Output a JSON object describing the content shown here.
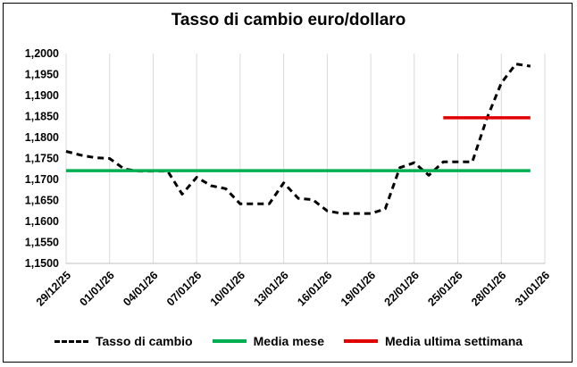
{
  "chart_data": {
    "type": "line",
    "title": "Tasso di cambio euro/dollaro",
    "xlabel": "",
    "ylabel": "",
    "x_range": [
      "2025-12-29",
      "2026-01-31"
    ],
    "x_tick_labels": [
      "29/12/25",
      "01/01/26",
      "04/01/26",
      "07/01/26",
      "10/01/26",
      "13/01/26",
      "16/01/26",
      "19/01/26",
      "22/01/26",
      "25/01/26",
      "28/01/26",
      "31/01/26"
    ],
    "ylim": [
      1.15,
      1.2
    ],
    "y_tick_labels": [
      "1,1500",
      "1,1550",
      "1,1600",
      "1,1650",
      "1,1700",
      "1,1750",
      "1,1800",
      "1,1850",
      "1,1900",
      "1,1950",
      "1,2000"
    ],
    "grid": "vertical",
    "legend_position": "bottom",
    "series": [
      {
        "name": "Tasso di cambio",
        "style": "dashed",
        "color": "#000000",
        "x": [
          "2025-12-29",
          "2025-12-30",
          "2025-12-31",
          "2026-01-01",
          "2026-01-02",
          "2026-01-03",
          "2026-01-04",
          "2026-01-05",
          "2026-01-06",
          "2026-01-07",
          "2026-01-08",
          "2026-01-09",
          "2026-01-10",
          "2026-01-11",
          "2026-01-12",
          "2026-01-13",
          "2026-01-14",
          "2026-01-15",
          "2026-01-16",
          "2026-01-17",
          "2026-01-18",
          "2026-01-19",
          "2026-01-20",
          "2026-01-21",
          "2026-01-22",
          "2026-01-23",
          "2026-01-24",
          "2026-01-25",
          "2026-01-26",
          "2026-01-27",
          "2026-01-28",
          "2026-01-29",
          "2026-01-30"
        ],
        "y": [
          1.1767,
          1.1758,
          1.1752,
          1.175,
          1.1725,
          1.172,
          1.172,
          1.172,
          1.1665,
          1.1705,
          1.1685,
          1.1678,
          1.1642,
          1.1642,
          1.1642,
          1.1692,
          1.1655,
          1.1652,
          1.1625,
          1.1619,
          1.1619,
          1.1619,
          1.163,
          1.1728,
          1.174,
          1.171,
          1.1742,
          1.1742,
          1.1742,
          1.1845,
          1.193,
          1.1975,
          1.197
        ]
      },
      {
        "name": "Media mese",
        "style": "solid",
        "color": "#00b050",
        "x": [
          "2025-12-29",
          "2026-01-30"
        ],
        "y": [
          1.1721,
          1.1721
        ]
      },
      {
        "name": "Media ultima settimana",
        "style": "solid",
        "color": "#e00000",
        "x": [
          "2026-01-24",
          "2026-01-30"
        ],
        "y": [
          1.1847,
          1.1847
        ]
      }
    ]
  }
}
